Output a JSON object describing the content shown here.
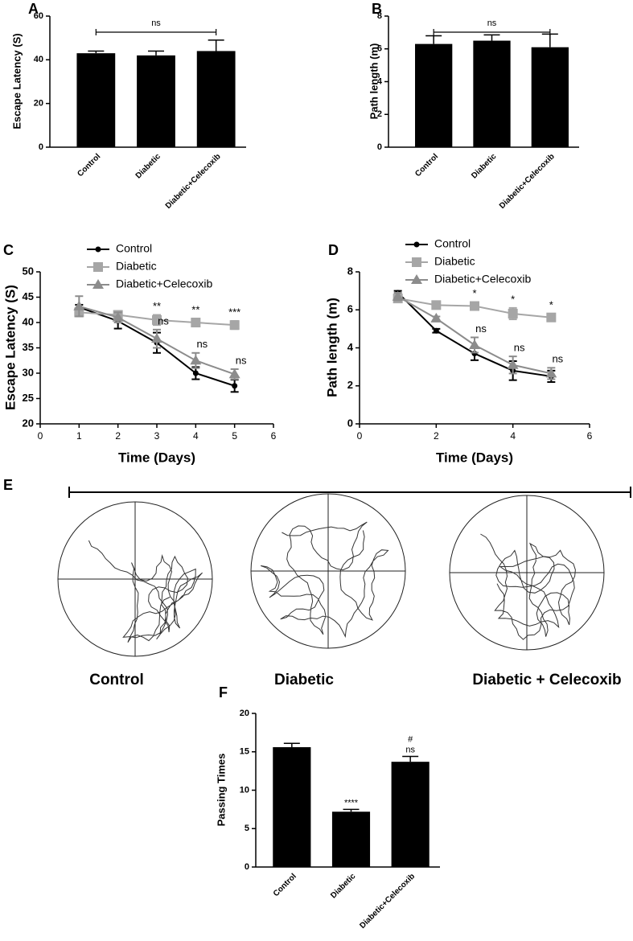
{
  "chart_data": [
    {
      "type": "bar",
      "panel": "A",
      "ylabel": "Escape Latency (S)",
      "categories": [
        "Control",
        "Diabetic",
        "Diabetic+Celecoxib"
      ],
      "values": [
        43,
        42,
        44
      ],
      "errors": [
        1,
        2,
        5
      ],
      "color": "#000000",
      "ylim": [
        0,
        60
      ],
      "yticks": [
        0,
        20,
        40,
        60
      ],
      "comparison": "ns"
    },
    {
      "type": "bar",
      "panel": "B",
      "ylabel": "Path length (m)",
      "categories": [
        "Control",
        "Diabetic",
        "Diabetic+Celecoxib"
      ],
      "values": [
        6.3,
        6.5,
        6.1
      ],
      "errors": [
        0.5,
        0.35,
        0.8
      ],
      "color": "#000000",
      "ylim": [
        0,
        8
      ],
      "yticks": [
        0,
        2,
        4,
        6,
        8
      ],
      "comparison": "ns"
    },
    {
      "type": "line",
      "panel": "C",
      "ylabel": "Escape Latency (S)",
      "xlabel": "Time (Days)",
      "x": [
        1,
        2,
        3,
        4,
        5
      ],
      "xlim": [
        0,
        6
      ],
      "xticks": [
        0,
        1,
        2,
        3,
        4,
        5,
        6
      ],
      "ylim": [
        20,
        50
      ],
      "yticks": [
        20,
        25,
        30,
        35,
        40,
        45,
        50
      ],
      "series": [
        {
          "name": "Control",
          "color": "#000000",
          "marker": "circle",
          "values": [
            43,
            40.3,
            36,
            30,
            27.5
          ],
          "errors": [
            0.5,
            1.5,
            2,
            1.2,
            1.2
          ]
        },
        {
          "name": "Diabetic",
          "color": "#a6a6a6",
          "marker": "square",
          "values": [
            42,
            41.5,
            40.5,
            40,
            39.5
          ],
          "errors": [
            0.8,
            0.8,
            1,
            0.8,
            0.8
          ],
          "annotations": [
            null,
            null,
            [
              "**"
            ],
            [
              "**"
            ],
            [
              "***"
            ]
          ]
        },
        {
          "name": "Diabetic+Celecoxib",
          "color": "#8c8c8c",
          "marker": "triangle",
          "values": [
            43.2,
            41,
            36.8,
            32.5,
            29.8
          ],
          "errors": [
            2,
            1,
            1.8,
            1.5,
            1
          ],
          "annotations": [
            null,
            null,
            [
              "ns"
            ],
            [
              "ns"
            ],
            [
              "ns"
            ]
          ]
        }
      ]
    },
    {
      "type": "line",
      "panel": "D",
      "ylabel": "Path length (m)",
      "xlabel": "Time (Days)",
      "x": [
        1,
        2,
        3,
        4,
        5
      ],
      "xlim": [
        0,
        6
      ],
      "xticks": [
        0,
        2,
        4,
        6
      ],
      "ylim": [
        0,
        8
      ],
      "yticks": [
        0,
        2,
        4,
        6,
        8
      ],
      "series": [
        {
          "name": "Control",
          "color": "#000000",
          "marker": "circle",
          "values": [
            6.9,
            4.9,
            3.7,
            2.8,
            2.5
          ],
          "errors": [
            0.1,
            0.1,
            0.35,
            0.5,
            0.3
          ]
        },
        {
          "name": "Diabetic",
          "color": "#a6a6a6",
          "marker": "square",
          "values": [
            6.6,
            6.25,
            6.2,
            5.8,
            5.6
          ],
          "errors": [
            0.2,
            0.15,
            0.2,
            0.3,
            0.2
          ],
          "annotations": [
            null,
            null,
            [
              "*"
            ],
            [
              "*"
            ],
            [
              "*"
            ]
          ]
        },
        {
          "name": "Diabetic+Celecoxib",
          "color": "#8c8c8c",
          "marker": "triangle",
          "values": [
            6.7,
            5.55,
            4.15,
            3.1,
            2.65
          ],
          "errors": [
            0.2,
            0.1,
            0.4,
            0.45,
            0.3
          ],
          "annotations": [
            null,
            null,
            [
              "ns"
            ],
            [
              "ns"
            ],
            [
              "ns"
            ]
          ]
        }
      ]
    },
    {
      "type": "bar",
      "panel": "F",
      "ylabel": "Passing Times",
      "categories": [
        "Control",
        "Diabetic",
        "Diabetic+Celecoxib"
      ],
      "values": [
        15.6,
        7.2,
        13.7
      ],
      "errors": [
        0.5,
        0.3,
        0.7
      ],
      "color": "#000000",
      "ylim": [
        0,
        20
      ],
      "yticks": [
        0,
        5,
        10,
        15,
        20
      ],
      "annotations": [
        null,
        [
          "****"
        ],
        [
          "ns",
          "#"
        ]
      ]
    }
  ],
  "trajectories": {
    "panel": "E",
    "captions": [
      "Control",
      "Diabetic",
      "Diabetic + Celecoxib"
    ]
  }
}
